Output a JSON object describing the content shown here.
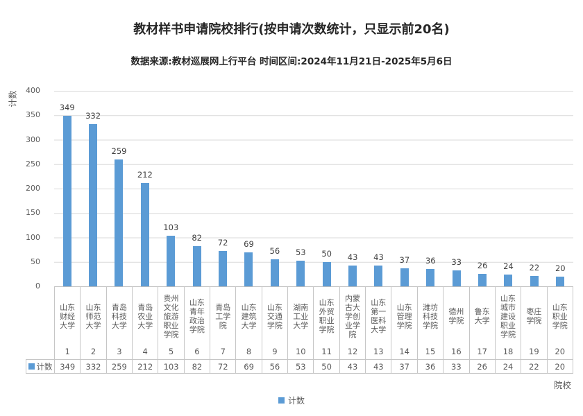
{
  "title": "教材样书申请院校排行(按申请次数统计，只显示前20名)",
  "subtitle": "数据来源:教材巡展网上行平台 时间区间:2024年11月21日-2025年5月6日",
  "axes": {
    "y_title": "计数",
    "x_title": "院校",
    "y_ticks": [
      400,
      350,
      300,
      250,
      200,
      150,
      100,
      50,
      0
    ]
  },
  "legend": {
    "label": "计数"
  },
  "table": {
    "row_label": "计数"
  },
  "colors": {
    "bar": "#5b9bd5",
    "gridline": "#d9d9d9",
    "table_border": "#c6c6c6",
    "axis_text": "#595959",
    "value_label": "#404040",
    "title_text": "#262626"
  },
  "chart_data": {
    "type": "bar",
    "title": "教材样书申请院校排行(按申请次数统计，只显示前20名)",
    "subtitle": "数据来源:教材巡展网上行平台 时间区间:2024年11月21日-2025年5月6日",
    "xlabel": "院校",
    "ylabel": "计数",
    "ylim": [
      0,
      400
    ],
    "ytick_step": 50,
    "grid": true,
    "legend_position": "bottom",
    "series_name": "计数",
    "categories": [
      "山东财经大学",
      "山东师范大学",
      "青岛科技大学",
      "青岛农业大学",
      "贵州文化旅游职业学院",
      "山东青年政治学院",
      "青岛工学院",
      "山东建筑大学",
      "山东交通学院",
      "湖南工业大学",
      "山东外贸职业学院",
      "内蒙古大学创业学院",
      "山东第一医科大学",
      "山东管理学院",
      "潍坊科技学院",
      "德州学院",
      "鲁东大学",
      "山东城市建设职业学院",
      "枣庄学院",
      "山东职业学院"
    ],
    "ranks": [
      1,
      2,
      3,
      4,
      5,
      6,
      7,
      8,
      9,
      10,
      11,
      12,
      13,
      14,
      15,
      16,
      17,
      18,
      19,
      20
    ],
    "values": [
      349,
      332,
      259,
      212,
      103,
      82,
      72,
      69,
      56,
      53,
      50,
      43,
      43,
      37,
      36,
      33,
      26,
      24,
      22,
      20
    ]
  }
}
